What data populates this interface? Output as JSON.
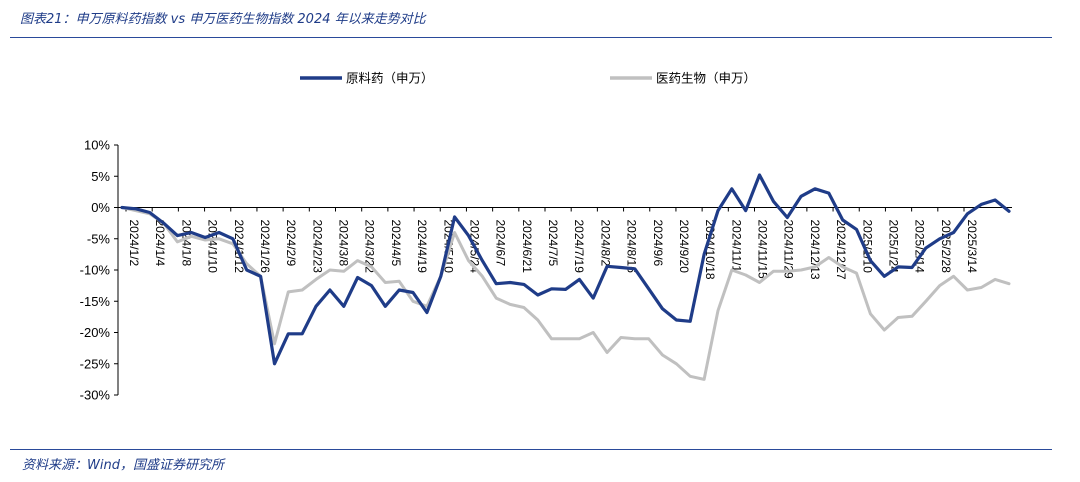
{
  "header": {
    "title": "图表21：申万原料药指数 vs 申万医药生物指数 2024 年以来走势对比"
  },
  "footer": {
    "source": "资料来源：Wind，国盛证券研究所"
  },
  "colors": {
    "series_1": "#1f3c88",
    "series_2": "#c0c0c0",
    "rule": "#2a4a9a"
  },
  "chart_data": {
    "type": "line",
    "title": "",
    "xlabel": "",
    "ylabel": "",
    "ylim": [
      -30,
      10
    ],
    "y_ticks": [
      "10%",
      "5%",
      "0%",
      "-5%",
      "-10%",
      "-15%",
      "-20%",
      "-25%",
      "-30%"
    ],
    "x_tick_labels": [
      "2024/1/2",
      "2024/1/4",
      "2024/1/8",
      "2024/1/10",
      "2024/1/12",
      "2024/1/26",
      "2024/2/9",
      "2024/2/23",
      "2024/3/8",
      "2024/3/22",
      "2024/4/5",
      "2024/4/19",
      "2024/5/10",
      "2024/5/24",
      "2024/6/7",
      "2024/6/21",
      "2024/7/5",
      "2024/7/19",
      "2024/8/2",
      "2024/8/16",
      "2024/9/6",
      "2024/9/20",
      "2024/10/18",
      "2024/11/1",
      "2024/11/15",
      "2024/11/29",
      "2024/12/13",
      "2024/12/27",
      "2025/1/10",
      "2025/1/24",
      "2025/2/14",
      "2025/2/28",
      "2025/3/14"
    ],
    "legend_position": "top",
    "grid": false,
    "series": [
      {
        "name": "原料药（申万）",
        "values": [
          0,
          -0.2,
          -0.8,
          -2.5,
          -4.5,
          -4,
          -4.8,
          -4,
          -5,
          -10,
          -11,
          -25,
          -20.2,
          -20.2,
          -15.8,
          -13.2,
          -15.8,
          -11.2,
          -12.5,
          -15.8,
          -13.2,
          -13.6,
          -16.8,
          -11,
          -1.5,
          -4.5,
          -8.5,
          -12.2,
          -12,
          -12.3,
          -14,
          -13,
          -13.1,
          -11.5,
          -14.5,
          -9.4,
          -9.6,
          -9.8,
          -13,
          -16.2,
          -18,
          -18.2,
          -7.5,
          -0.5,
          3,
          -0.5,
          5.2,
          1,
          -1.6,
          1.8,
          3,
          2.3,
          -2,
          -3.5,
          -8.5,
          -11,
          -9.5,
          -9.6,
          -6.5,
          -5,
          -4,
          -1,
          0.5,
          1.2,
          -0.6
        ]
      },
      {
        "name": "医药生物（申万）",
        "values": [
          0,
          -0.5,
          -1,
          -2.5,
          -5.5,
          -4.6,
          -5.2,
          -5,
          -5.8,
          -9,
          -11,
          -21.8,
          -13.5,
          -13.2,
          -11.5,
          -10,
          -10.2,
          -8.5,
          -9.5,
          -12,
          -11.8,
          -15,
          -15.8,
          -11,
          -4,
          -8.5,
          -11,
          -14.5,
          -15.5,
          -16,
          -18,
          -21,
          -21,
          -21,
          -20,
          -23.2,
          -20.8,
          -21,
          -21,
          -23.6,
          -25,
          -27,
          -27.5,
          -16.5,
          -10,
          -10.8,
          -12,
          -10.2,
          -10.2,
          -10,
          -9.5,
          -8,
          -9.5,
          -10.5,
          -17,
          -19.6,
          -17.6,
          -17.4,
          -15,
          -12.5,
          -11,
          -13.2,
          -12.8,
          -11.5,
          -12.2
        ]
      }
    ]
  }
}
